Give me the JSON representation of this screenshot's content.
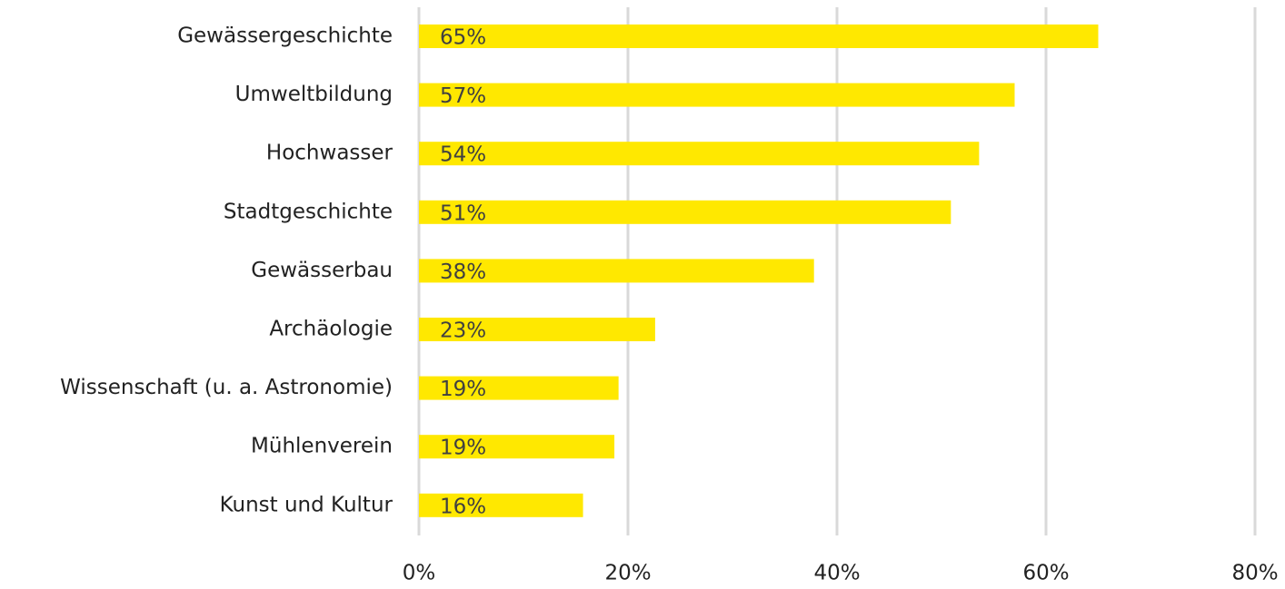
{
  "chart_data": {
    "type": "barh",
    "categories": [
      "Gewässergeschichte",
      "Umweltbildung",
      "Hochwasser",
      "Stadtgeschichte",
      "Gewässerbau",
      "Archäologie",
      "Wissenschaft (u. a. Astronomie)",
      "Mühlenverein",
      "Kunst und Kultur"
    ],
    "values": [
      65,
      57,
      53.6,
      50.9,
      37.8,
      22.6,
      19.1,
      18.7,
      15.7
    ],
    "value_labels": [
      "65%",
      "57%",
      "54%",
      "51%",
      "38%",
      "23%",
      "19%",
      "19%",
      "16%"
    ],
    "color": "#ffe800",
    "xlim": [
      0,
      80
    ],
    "xticks": [
      {
        "value": 0,
        "label": "0%"
      },
      {
        "value": 20,
        "label": "20%"
      },
      {
        "value": 40,
        "label": "40%"
      },
      {
        "value": 60,
        "label": "60%"
      },
      {
        "value": 80,
        "label": "80%"
      }
    ],
    "grid": true
  }
}
